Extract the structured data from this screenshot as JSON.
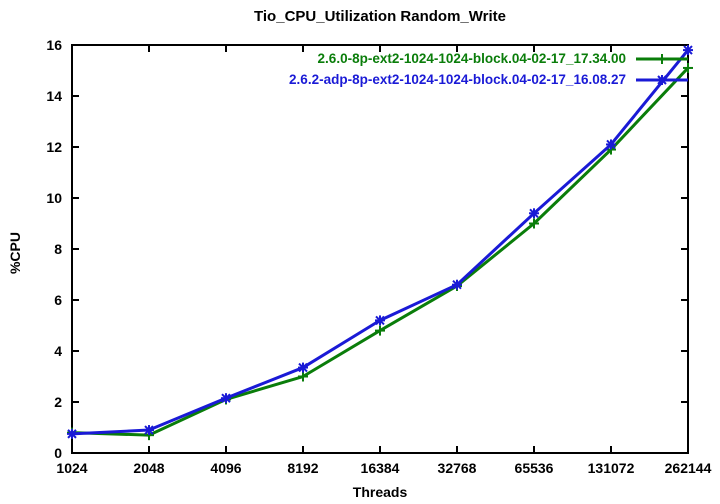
{
  "chart_data": {
    "type": "line",
    "title": "Tio_CPU_Utilization Random_Write",
    "xlabel": "Threads",
    "ylabel": "%CPU",
    "x_scale": "log2-category",
    "categories": [
      "1024",
      "2048",
      "4096",
      "8192",
      "16384",
      "32768",
      "65536",
      "131072",
      "262144"
    ],
    "y_ticks": [
      0,
      2,
      4,
      6,
      8,
      10,
      12,
      14,
      16
    ],
    "ylim": [
      0,
      16
    ],
    "grid": false,
    "legend_position": "top-right-inside",
    "series": [
      {
        "name": "2.6.0-8p-ext2-1024-1024-block.04-02-17_17.34.00",
        "color": "#0a7d0a",
        "marker": "plus",
        "values": [
          0.8,
          0.7,
          2.1,
          3.0,
          4.8,
          6.55,
          9.0,
          11.9,
          15.1
        ]
      },
      {
        "name": "2.6.2-adp-8p-ext2-1024-1024-block.04-02-17_16.08.27",
        "color": "#1a1ad6",
        "marker": "asterisk",
        "values": [
          0.75,
          0.9,
          2.15,
          3.35,
          5.2,
          6.6,
          9.4,
          12.1,
          15.8
        ]
      }
    ]
  },
  "colors": {
    "background": "#ffffff",
    "axis": "#000000",
    "text": "#000000"
  }
}
